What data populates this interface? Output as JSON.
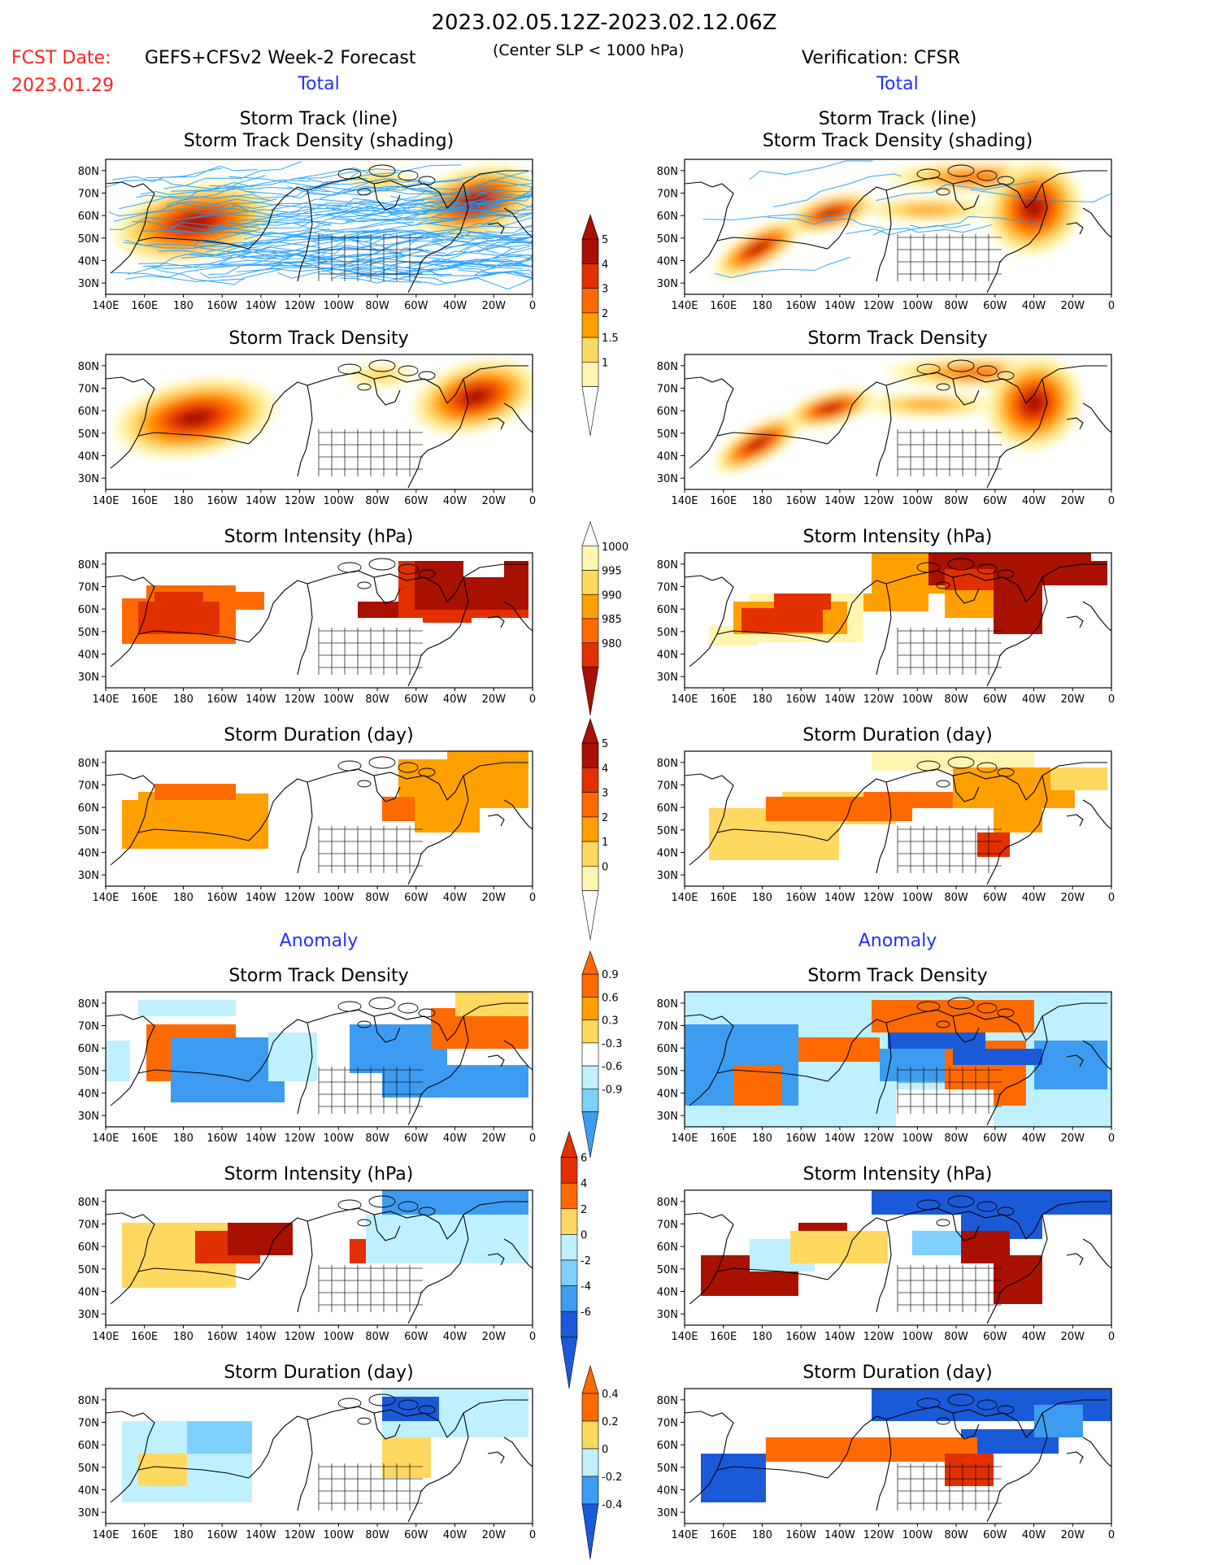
{
  "header": {
    "period": "2023.02.05.12Z-2023.02.12.06Z",
    "fcst_label": "FCST Date:",
    "fcst_date": "2023.01.29",
    "model": "GEFS+CFSv2 Week-2 Forecast",
    "criterion": "(Center SLP < 1000 hPa)",
    "verification": "Verification: CFSR"
  },
  "sections": {
    "total_left": "Total",
    "total_right": "Total",
    "anomaly_left": "Anomaly",
    "anomaly_right": "Anomaly"
  },
  "panel_titles": {
    "track_line": "Storm Track (line)",
    "track_shading": "Storm Track Density (shading)",
    "density": "Storm Track Density",
    "intensity": "Storm Intensity (hPa)",
    "duration": "Storm Duration (day)"
  },
  "axes": {
    "lon_labels": [
      "140E",
      "160E",
      "180",
      "160W",
      "140W",
      "120W",
      "100W",
      "80W",
      "60W",
      "40W",
      "20W",
      "0"
    ],
    "lat_labels": [
      "80N",
      "70N",
      "60N",
      "50N",
      "40N",
      "30N"
    ]
  },
  "colorbars": {
    "density_total": [
      "5",
      "4",
      "3",
      "2",
      "1.5",
      "1"
    ],
    "intensity_total": [
      "1000",
      "995",
      "990",
      "985",
      "980"
    ],
    "duration_total": [
      "5",
      "4",
      "3",
      "2",
      "1",
      "0"
    ],
    "density_anom": [
      "0.9",
      "0.6",
      "0.3",
      "-0.3",
      "-0.6",
      "-0.9"
    ],
    "intensity_anom": [
      "6",
      "4",
      "2",
      "0",
      "-2",
      "-4",
      "-6"
    ],
    "duration_anom": [
      "0.4",
      "0.2",
      "0",
      "-0.2",
      "-0.4"
    ]
  },
  "colors": {
    "title_red": "#ff2020",
    "section_blue": "#2030ff",
    "track_line": "#1a9cff",
    "warm": [
      "#fff5b0",
      "#ffd860",
      "#ffa000",
      "#ff6a00",
      "#e23000",
      "#a81000"
    ],
    "cool": [
      "#bff0ff",
      "#7fd0ff",
      "#3d9cf0",
      "#1a5ad8"
    ]
  }
}
